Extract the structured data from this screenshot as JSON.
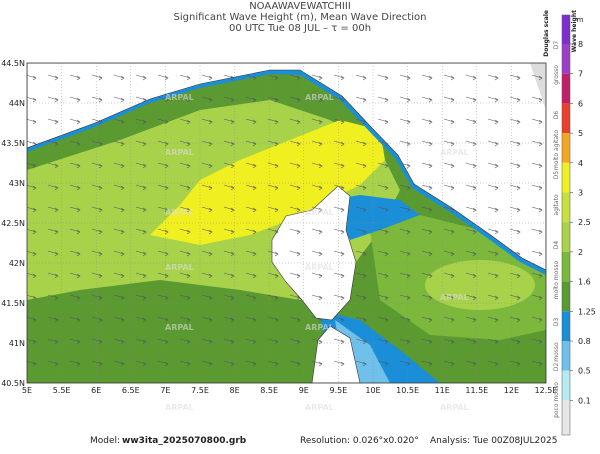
{
  "header": {
    "model": "NOAAWAVEWATCHIII",
    "title": "Significant Wave Height (m), Mean Wave Direction",
    "time": "00 UTC Tue 08 JUL  –  τ = 00h"
  },
  "map": {
    "x_ticks": [
      "5E",
      "5.5E",
      "6E",
      "6.5E",
      "7E",
      "7.5E",
      "8E",
      "8.5E",
      "9E",
      "9.5E",
      "10E",
      "10.5E",
      "11E",
      "11.5E",
      "12E",
      "12.5E"
    ],
    "y_ticks": [
      "40.5N",
      "41N",
      "41.5N",
      "42N",
      "42.5N",
      "43N",
      "43.5N",
      "44N",
      "44.5N"
    ],
    "watermark": "ARPAL"
  },
  "legend": {
    "title": "Wave height",
    "unit": "m",
    "scale_title": "Douglas scale",
    "levels": [
      8,
      7,
      6,
      5,
      4,
      3,
      2.5,
      2,
      1.6,
      1.25,
      0.8,
      0.5,
      0.1
    ],
    "colors": [
      "#7b2fd0",
      "#9b3fc8",
      "#c0206a",
      "#e8402a",
      "#f5a623",
      "#f0f020",
      "#c8e040",
      "#a8d24a",
      "#7cb83c",
      "#5a9a30",
      "#1a8fd8",
      "#6fc0ea",
      "#b8e8f0",
      "#e6e6e6"
    ],
    "douglas": [
      "D7",
      "grosso",
      "D6",
      "molto agitato",
      "D5",
      "agitato",
      "D4",
      "molto mosso",
      "D3",
      "mosso",
      "D2",
      "poco mosso"
    ]
  },
  "footer": {
    "model_label": "Model:",
    "model_file": "ww3ita_2025070800.grb",
    "resolution": "Resolution: 0.026°x0.020°",
    "analysis": "Analysis: Tue 00Z08JUL2025"
  }
}
